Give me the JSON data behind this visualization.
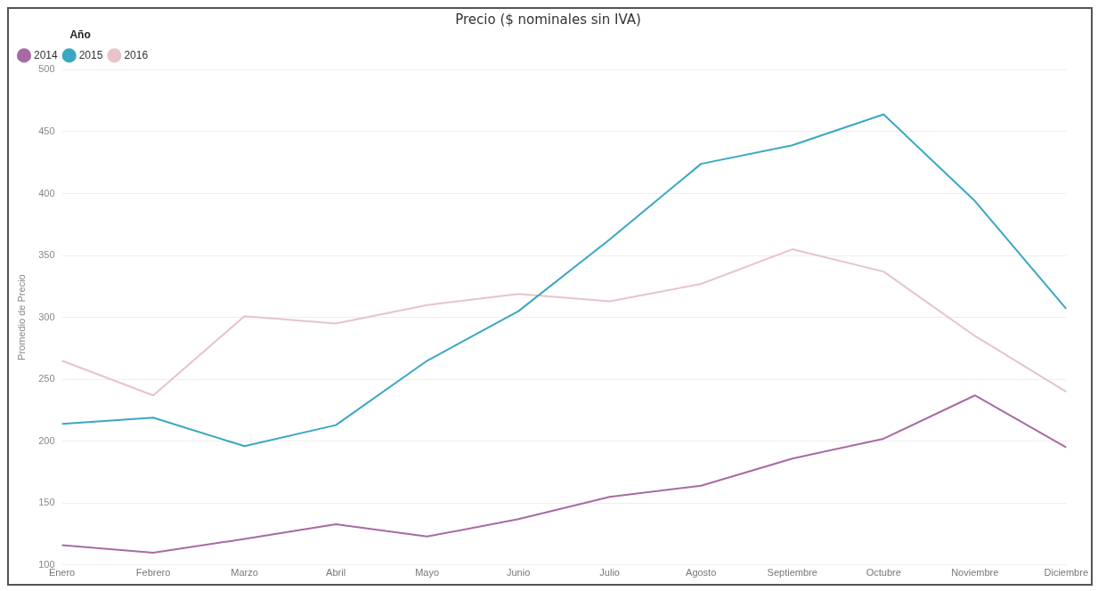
{
  "chart_data": {
    "type": "line",
    "title": "Precio ($ nominales sin IVA)",
    "ylabel": "Promedio de Precio",
    "legend_title": "Año",
    "categories": [
      "Enero",
      "Febrero",
      "Marzo",
      "Abril",
      "Mayo",
      "Junio",
      "Julio",
      "Agosto",
      "Septiembre",
      "Octubre",
      "Noviembre",
      "Diciembre"
    ],
    "series": [
      {
        "name": "2014",
        "color": "#a86aa4",
        "values": [
          116,
          110,
          121,
          133,
          123,
          137,
          155,
          164,
          186,
          202,
          237,
          195
        ]
      },
      {
        "name": "2015",
        "color": "#3aa7c4",
        "values": [
          214,
          219,
          196,
          213,
          265,
          305,
          363,
          424,
          439,
          464,
          394,
          307
        ]
      },
      {
        "name": "2016",
        "color": "#e6c4c8",
        "values": [
          265,
          237,
          301,
          295,
          310,
          319,
          313,
          327,
          355,
          337,
          285,
          240
        ]
      }
    ],
    "ylim": [
      100,
      500
    ],
    "yticks": [
      100,
      150,
      200,
      250,
      300,
      350,
      400,
      450,
      500
    ],
    "grid": "y",
    "legend": "top left",
    "marker": "none",
    "line_style": "solid"
  }
}
